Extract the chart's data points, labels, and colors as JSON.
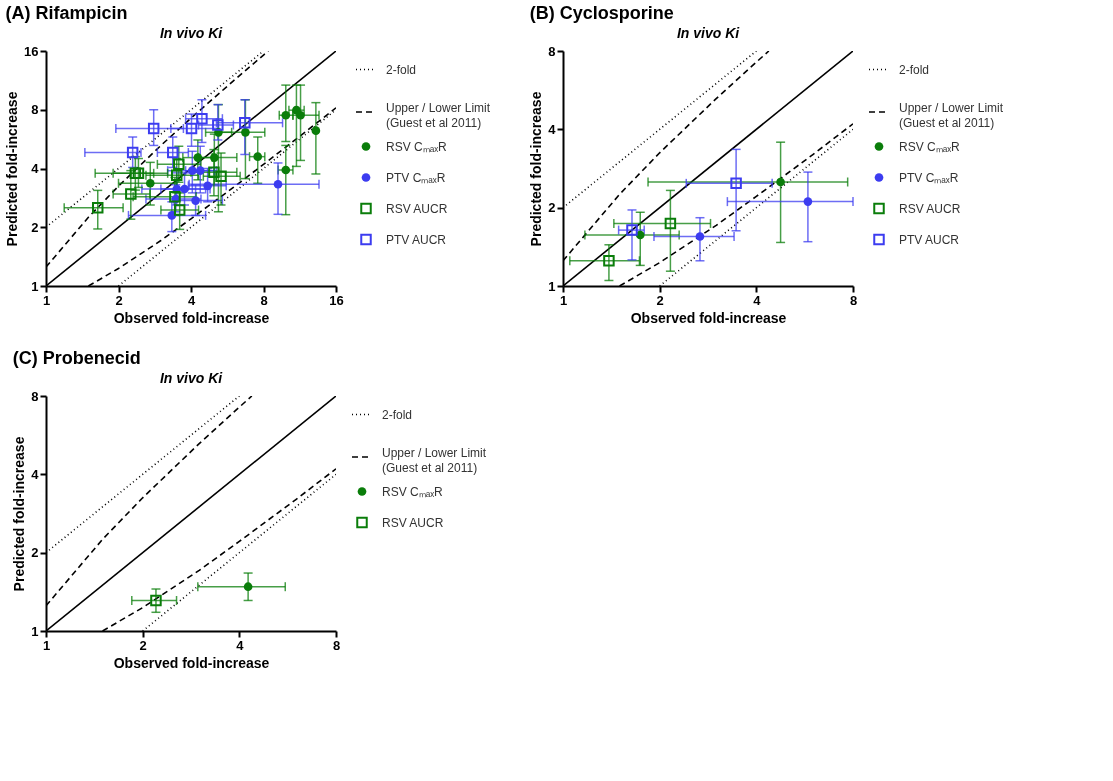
{
  "chart_data": [
    {
      "type": "scatter",
      "title": "(A) Rifampicin",
      "subtitle": "In vivo Ki",
      "xlabel": "Observed fold-increase",
      "ylabel": "Predicted fold-increase",
      "log": "xy",
      "xlim": [
        1,
        16
      ],
      "ylim": [
        1,
        16
      ],
      "xticks": [
        1,
        2,
        4,
        8,
        16
      ],
      "yticks": [
        1,
        2,
        4,
        8,
        16
      ],
      "legend": "right",
      "series": [
        {
          "name": "2-fold",
          "type": "line",
          "line_style": "dotted",
          "color": "#000000",
          "x": [
            1,
            8
          ],
          "values": [
            2,
            16
          ]
        },
        {
          "type": "line",
          "line_style": "dotted",
          "color": "#000000",
          "x": [
            2,
            16
          ],
          "values": [
            1,
            8
          ]
        },
        {
          "name": "Upper / Lower Limit\n(Guest et al 2011)",
          "type": "line",
          "line_style": "dashed",
          "color": "#000000",
          "x": [
            1,
            1.5,
            2,
            3,
            4,
            6,
            8,
            8.375
          ],
          "values": [
            1.25,
            2.25,
            3.25,
            5.25,
            7.25,
            11.25,
            15.25,
            16
          ]
        },
        {
          "type": "line",
          "line_style": "dashed",
          "color": "#000000",
          "x": [
            1.5,
            2,
            3,
            4,
            6,
            8,
            12,
            16
          ],
          "values": [
            1,
            1.23,
            1.71,
            2.21,
            3.2,
            4.2,
            6.19,
            8.19
          ]
        },
        {
          "type": "line",
          "line_style": "solid",
          "color": "#000000",
          "x": [
            1,
            16
          ],
          "values": [
            1,
            16
          ]
        },
        {
          "name": "RSV CₘₐₓR",
          "marker": "circle",
          "color": "#0a7d0a",
          "x": [
            9.9,
            10.96,
            11.4,
            13.2,
            9.9,
            7.57,
            6.73,
            5.2,
            5.0,
            4.27,
            2.71
          ],
          "values": [
            7.5,
            7.96,
            7.5,
            6.25,
            3.93,
            4.6,
            6.13,
            6.13,
            4.55,
            4.55,
            3.36
          ],
          "errors": [
            [
              5.5,
              10.7
            ],
            [
              4.1,
              10.7
            ],
            [
              4.4,
              10.7
            ],
            [
              3.75,
              8.7
            ],
            [
              2.32,
              5.25
            ],
            [
              3.36,
              5.8
            ],
            [
              3.55,
              9.0
            ],
            [
              2.4,
              8.5
            ],
            [
              3.3,
              6.0
            ],
            [
              3.5,
              5.6
            ],
            [
              2.6,
              4.3
            ]
          ],
          "xerrors": [
            [
              9.3,
              10.6
            ],
            [
              10.2,
              11.8
            ],
            [
              10.6,
              13.6
            ],
            null,
            [
              9.2,
              10.6
            ],
            [
              7.0,
              8.1
            ],
            [
              5.2,
              8.1
            ],
            [
              4.6,
              5.9
            ],
            [
              4.3,
              6.2
            ],
            [
              3.7,
              4.9
            ],
            [
              2.0,
              3.5
            ]
          ]
        },
        {
          "name": "PTV CₘₐₓR",
          "marker": "circle",
          "color": "#3c3cf0",
          "x": [
            9.19,
            4.05,
            4.37,
            3.76,
            3.49,
            4.69,
            4.18,
            3.33,
            3.46
          ],
          "values": [
            3.32,
            3.9,
            3.9,
            3.14,
            3.14,
            3.26,
            2.74,
            2.3,
            2.79
          ],
          "errors": [
            [
              2.33,
              4.27
            ],
            [
              3.0,
              4.9
            ],
            [
              3.0,
              5.2
            ],
            [
              2.6,
              3.8
            ],
            [
              2.6,
              3.8
            ],
            [
              2.7,
              4.0
            ],
            [
              2.3,
              3.3
            ],
            [
              1.9,
              2.7
            ],
            [
              2.4,
              3.3
            ]
          ],
          "xerrors": [
            [
              3.93,
              13.6
            ],
            [
              3.2,
              5.1
            ],
            [
              3.8,
              5.0
            ],
            [
              3.0,
              4.6
            ],
            [
              2.5,
              4.8
            ],
            [
              3.9,
              5.6
            ],
            [
              3.4,
              5.4
            ],
            [
              2.2,
              4.6
            ],
            [
              2.6,
              4.4
            ]
          ]
        },
        {
          "name": "RSV AUCR",
          "marker": "square",
          "color": "#0a7d0a",
          "x": [
            1.64,
            2.25,
            2.42,
            2.35,
            3.49,
            3.56,
            3.43,
            3.59,
            4.98,
            5.33
          ],
          "values": [
            2.52,
            2.96,
            3.78,
            3.78,
            3.69,
            4.2,
            2.87,
            2.45,
            3.83,
            3.65
          ],
          "errors": [
            [
              1.96,
              3.09
            ],
            [
              2.2,
              3.9
            ],
            [
              3.2,
              4.5
            ],
            [
              3.1,
              4.6
            ],
            [
              3.0,
              4.5
            ],
            [
              3.4,
              5.2
            ],
            [
              2.3,
              3.6
            ],
            [
              1.95,
              3.0
            ],
            [
              2.9,
              5.0
            ],
            [
              2.6,
              4.8
            ]
          ],
          "xerrors": [
            [
              1.19,
              2.09
            ],
            [
              1.9,
              2.7
            ],
            [
              1.9,
              3.2
            ],
            [
              1.6,
              2.8
            ],
            [
              2.6,
              4.3
            ],
            [
              2.9,
              4.4
            ],
            [
              2.3,
              4.2
            ],
            [
              3.0,
              4.3
            ],
            [
              4.0,
              6.2
            ],
            [
              4.5,
              6.4
            ]
          ]
        },
        {
          "name": "PTV AUCR",
          "marker": "square",
          "color": "#3c3cf0",
          "x": [
            2.8,
            2.29,
            3.36,
            4.02,
            4.44,
            5.17,
            6.69
          ],
          "values": [
            6.41,
            4.83,
            4.83,
            6.41,
            7.2,
            6.68,
            6.86
          ],
          "errors": [
            [
              5.25,
              8.0
            ],
            [
              4.05,
              5.8
            ],
            [
              4.05,
              5.8
            ],
            [
              5.2,
              7.6
            ],
            [
              5.44,
              9.0
            ],
            [
              5.6,
              8.5
            ],
            [
              4.72,
              9.0
            ]
          ],
          "xerrors": [
            [
              1.95,
              3.72
            ],
            [
              1.45,
              2.48
            ],
            [
              2.9,
              3.9
            ],
            [
              3.3,
              5.2
            ],
            [
              3.8,
              5.4
            ],
            [
              4.3,
              6.0
            ],
            [
              5.1,
              9.6
            ]
          ]
        }
      ]
    },
    {
      "type": "scatter",
      "title": "(B) Cyclosporine",
      "subtitle": "In vivo Ki",
      "xlabel": "Observed fold-increase",
      "ylabel": "Predicted fold-increase",
      "log": "xy",
      "xlim": [
        1,
        8
      ],
      "ylim": [
        1,
        8
      ],
      "xticks": [
        1,
        2,
        4,
        8
      ],
      "yticks": [
        1,
        2,
        4,
        8
      ],
      "legend": "right",
      "series": [
        {
          "name": "2-fold",
          "type": "line",
          "line_style": "dotted",
          "color": "#000000",
          "x": [
            1,
            4
          ],
          "values": [
            2,
            8
          ]
        },
        {
          "type": "line",
          "line_style": "dotted",
          "color": "#000000",
          "x": [
            2,
            8
          ],
          "values": [
            1,
            4
          ]
        },
        {
          "name": "Upper / Lower Limit\n(Guest et al 2011)",
          "type": "line",
          "line_style": "dashed",
          "color": "#000000",
          "x": [
            1,
            1.5,
            2,
            3,
            4,
            4.375
          ],
          "values": [
            1.25,
            2.25,
            3.25,
            5.25,
            7.25,
            8
          ]
        },
        {
          "type": "line",
          "line_style": "dashed",
          "color": "#000000",
          "x": [
            1.5,
            2,
            3,
            4,
            6,
            8
          ],
          "values": [
            1,
            1.23,
            1.71,
            2.21,
            3.2,
            4.2
          ]
        },
        {
          "type": "line",
          "line_style": "solid",
          "color": "#000000",
          "x": [
            1,
            8
          ],
          "values": [
            1,
            8
          ]
        },
        {
          "name": "RSV CₘₐₓR",
          "marker": "circle",
          "color": "#0a7d0a",
          "x": [
            4.76,
            1.74
          ],
          "values": [
            2.51,
            1.57
          ],
          "errors": [
            [
              1.47,
              3.57
            ],
            [
              1.2,
              1.92
            ]
          ],
          "xerrors": [
            [
              1.84,
              7.7
            ],
            [
              1.17,
              2.3
            ]
          ]
        },
        {
          "name": "PTV CₘₐₓR",
          "marker": "circle",
          "color": "#3c3cf0",
          "x": [
            5.79,
            2.67
          ],
          "values": [
            2.11,
            1.55
          ],
          "errors": [
            [
              1.48,
              2.74
            ],
            [
              1.25,
              1.83
            ]
          ],
          "xerrors": [
            [
              3.25,
              8
            ],
            [
              1.92,
              3.41
            ]
          ]
        },
        {
          "name": "RSV AUCR",
          "marker": "square",
          "color": "#0a7d0a",
          "x": [
            2.16,
            1.39
          ],
          "values": [
            1.74,
            1.25
          ],
          "errors": [
            [
              1.14,
              2.33
            ],
            [
              1.05,
              1.44
            ]
          ],
          "xerrors": [
            [
              1.44,
              2.88
            ],
            [
              1.05,
              1.73
            ]
          ]
        },
        {
          "name": "PTV AUCR",
          "marker": "square",
          "color": "#3c3cf0",
          "x": [
            3.46,
            1.64
          ],
          "values": [
            2.48,
            1.64
          ],
          "errors": [
            [
              1.63,
              3.35
            ],
            [
              1.26,
              1.96
            ]
          ],
          "xerrors": [
            [
              2.42,
              4.48
            ],
            [
              1.49,
              1.79
            ]
          ]
        }
      ]
    },
    {
      "type": "scatter",
      "title": "(C) Probenecid",
      "subtitle": "In vivo Ki",
      "xlabel": "Observed fold-increase",
      "ylabel": "Predicted fold-increase",
      "log": "xy",
      "xlim": [
        1,
        8
      ],
      "ylim": [
        1,
        8
      ],
      "xticks": [
        1,
        2,
        4,
        8
      ],
      "yticks": [
        1,
        2,
        4,
        8
      ],
      "legend": "right",
      "series": [
        {
          "name": "2-fold",
          "type": "line",
          "line_style": "dotted",
          "color": "#000000",
          "x": [
            1,
            4
          ],
          "values": [
            2,
            8
          ]
        },
        {
          "type": "line",
          "line_style": "dotted",
          "color": "#000000",
          "x": [
            2,
            8
          ],
          "values": [
            1,
            4
          ]
        },
        {
          "name": "Upper / Lower Limit\n(Guest et al 2011)",
          "type": "line",
          "line_style": "dashed",
          "color": "#000000",
          "x": [
            1,
            1.5,
            2,
            3,
            4,
            4.375
          ],
          "values": [
            1.25,
            2.25,
            3.25,
            5.25,
            7.25,
            8
          ]
        },
        {
          "type": "line",
          "line_style": "dashed",
          "color": "#000000",
          "x": [
            1.5,
            2,
            3,
            4,
            6,
            8
          ],
          "values": [
            1,
            1.23,
            1.71,
            2.21,
            3.2,
            4.2
          ]
        },
        {
          "type": "line",
          "line_style": "solid",
          "color": "#000000",
          "x": [
            1,
            8
          ],
          "values": [
            1,
            8
          ]
        },
        {
          "name": "RSV CₘₐₓR",
          "marker": "circle",
          "color": "#0a7d0a",
          "x": [
            4.26
          ],
          "values": [
            1.48
          ],
          "errors": [
            [
              1.31,
              1.67
            ]
          ],
          "xerrors": [
            [
              2.97,
              5.56
            ]
          ]
        },
        {
          "name": "RSV AUCR",
          "marker": "square",
          "color": "#0a7d0a",
          "x": [
            2.2
          ],
          "values": [
            1.31
          ],
          "errors": [
            [
              1.18,
              1.45
            ]
          ],
          "xerrors": [
            [
              1.85,
              2.55
            ]
          ]
        }
      ]
    }
  ]
}
